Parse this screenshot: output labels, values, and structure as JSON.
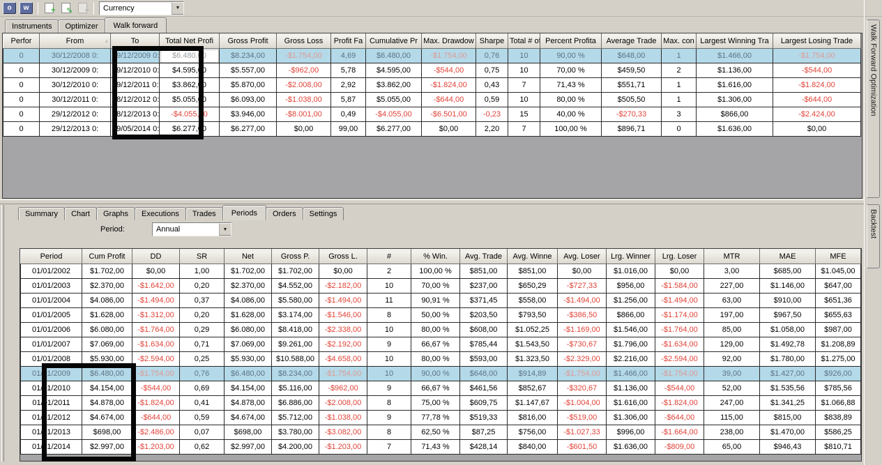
{
  "toolbar": {
    "optimizer_button_label": "o",
    "walkforward_button_label": "w",
    "new_icon_glyph": "+",
    "edit_icon_glyph": "✎",
    "remove_icon_glyph": "−",
    "instrument_selector_value": "Currency"
  },
  "top_panel": {
    "tabs": [
      {
        "label": "Instruments"
      },
      {
        "label": "Optimizer"
      },
      {
        "label": "Walk forward"
      }
    ],
    "active_tab": "Walk forward",
    "side_tab_label": "Walk Forward Optimization",
    "table": {
      "columns": [
        "Perfor",
        "From",
        "To",
        "Total Net Profi",
        "Gross Profit",
        "Gross Loss",
        "Profit Fa",
        "Cumulative Pr",
        "Max. Drawdow",
        "Sharpe",
        "Total # of",
        "Percent Profita",
        "Average Trade",
        "Max. con",
        "Largest Winning Tra",
        "Largest Losing Trade"
      ],
      "sort_column_index": 1,
      "sort_glyph": "▵",
      "selected_row_index": 0,
      "current_cell": [
        0,
        3
      ],
      "rows": [
        [
          "0",
          "30/12/2008 0:",
          "29/12/2009 0:",
          "$6.480,00",
          "$8.234,00",
          "-$1.754,00",
          "4,69",
          "$6.480,00",
          "-$1.754,00",
          "0,76",
          "10",
          "90,00 %",
          "$648,00",
          "1",
          "$1.466,00",
          "-$1.754,00"
        ],
        [
          "0",
          "30/12/2009 0:",
          "29/12/2010 0:",
          "$4.595,00",
          "$5.557,00",
          "-$962,00",
          "5,78",
          "$4.595,00",
          "-$544,00",
          "0,75",
          "10",
          "70,00 %",
          "$459,50",
          "2",
          "$1.136,00",
          "-$544,00"
        ],
        [
          "0",
          "30/12/2010 0:",
          "29/12/2011 0:",
          "$3.862,00",
          "$5.870,00",
          "-$2.008,00",
          "2,92",
          "$3.862,00",
          "-$1.824,00",
          "0,43",
          "7",
          "71,43 %",
          "$551,71",
          "1",
          "$1.616,00",
          "-$1.824,00"
        ],
        [
          "0",
          "30/12/2011 0:",
          "28/12/2012 0:",
          "$5.055,00",
          "$6.093,00",
          "-$1.038,00",
          "5,87",
          "$5.055,00",
          "-$644,00",
          "0,59",
          "10",
          "80,00 %",
          "$505,50",
          "1",
          "$1.306,00",
          "-$644,00"
        ],
        [
          "0",
          "29/12/2012 0:",
          "28/12/2013 0:",
          "-$4.055,00",
          "$3.946,00",
          "-$8.001,00",
          "0,49",
          "-$4.055,00",
          "-$6.501,00",
          "-0,23",
          "15",
          "40,00 %",
          "-$270,33",
          "3",
          "$866,00",
          "-$2.424,00"
        ],
        [
          "0",
          "29/12/2013 0:",
          "19/05/2014 0:",
          "$6.277,00",
          "$6.277,00",
          "$0,00",
          "99,00",
          "$6.277,00",
          "$0,00",
          "2,20",
          "7",
          "100,00 %",
          "$896,71",
          "0",
          "$1.636,00",
          "$0,00"
        ]
      ]
    }
  },
  "bottom_panel": {
    "tabs": [
      {
        "label": "Summary"
      },
      {
        "label": "Chart"
      },
      {
        "label": "Graphs"
      },
      {
        "label": "Executions"
      },
      {
        "label": "Trades"
      },
      {
        "label": "Periods"
      },
      {
        "label": "Orders"
      },
      {
        "label": "Settings"
      }
    ],
    "active_tab": "Periods",
    "side_tab_label": "Backtest",
    "period_label": "Period:",
    "period_value": "Annual",
    "table": {
      "columns": [
        "Period",
        "Cum Profit",
        "DD",
        "SR",
        "Net",
        "Gross P.",
        "Gross L.",
        "#",
        "% Win.",
        "Avg. Trade",
        "Avg. Winne",
        "Avg. Loser",
        "Lrg. Winner",
        "Lrg. Loser",
        "MTR",
        "MAE",
        "MFE"
      ],
      "selected_row_index": 7,
      "rows": [
        [
          "01/01/2002",
          "$1.702,00",
          "$0,00",
          "1,00",
          "$1.702,00",
          "$1.702,00",
          "$0,00",
          "2",
          "100,00 %",
          "$851,00",
          "$851,00",
          "$0,00",
          "$1.016,00",
          "$0,00",
          "3,00",
          "$685,00",
          "$1.045,00"
        ],
        [
          "01/01/2003",
          "$2.370,00",
          "-$1.642,00",
          "0,20",
          "$2.370,00",
          "$4.552,00",
          "-$2.182,00",
          "10",
          "70,00 %",
          "$237,00",
          "$650,29",
          "-$727,33",
          "$956,00",
          "-$1.584,00",
          "227,00",
          "$1.146,00",
          "$647,00"
        ],
        [
          "01/01/2004",
          "$4.086,00",
          "-$1.494,00",
          "0,37",
          "$4.086,00",
          "$5.580,00",
          "-$1.494,00",
          "11",
          "90,91 %",
          "$371,45",
          "$558,00",
          "-$1.494,00",
          "$1.256,00",
          "-$1.494,00",
          "63,00",
          "$910,00",
          "$651,36"
        ],
        [
          "01/01/2005",
          "$1.628,00",
          "-$1.312,00",
          "0,20",
          "$1.628,00",
          "$3.174,00",
          "-$1.546,00",
          "8",
          "50,00 %",
          "$203,50",
          "$793,50",
          "-$386,50",
          "$866,00",
          "-$1.174,00",
          "197,00",
          "$967,50",
          "$655,63"
        ],
        [
          "01/01/2006",
          "$6.080,00",
          "-$1.764,00",
          "0,29",
          "$6.080,00",
          "$8.418,00",
          "-$2.338,00",
          "10",
          "80,00 %",
          "$608,00",
          "$1.052,25",
          "-$1.169,00",
          "$1.546,00",
          "-$1.764,00",
          "85,00",
          "$1.058,00",
          "$987,00"
        ],
        [
          "01/01/2007",
          "$7.069,00",
          "-$1.634,00",
          "0,71",
          "$7.069,00",
          "$9.261,00",
          "-$2.192,00",
          "9",
          "66,67 %",
          "$785,44",
          "$1.543,50",
          "-$730,67",
          "$1.796,00",
          "-$1.634,00",
          "129,00",
          "$1.492,78",
          "$1.208,89"
        ],
        [
          "01/01/2008",
          "$5.930,00",
          "-$2.594,00",
          "0,25",
          "$5.930,00",
          "$10.588,00",
          "-$4.658,00",
          "10",
          "80,00 %",
          "$593,00",
          "$1.323,50",
          "-$2.329,00",
          "$2.216,00",
          "-$2.594,00",
          "92,00",
          "$1.780,00",
          "$1.275,00"
        ],
        [
          "01/01/2009",
          "$6.480,00",
          "-$1.754,00",
          "0,76",
          "$6.480,00",
          "$8.234,00",
          "-$1.754,00",
          "10",
          "90,00 %",
          "$648,00",
          "$914,89",
          "-$1.754,00",
          "$1.466,00",
          "-$1.754,00",
          "39,00",
          "$1.427,00",
          "$926,00"
        ],
        [
          "01/01/2010",
          "$4.154,00",
          "-$544,00",
          "0,69",
          "$4.154,00",
          "$5.116,00",
          "-$962,00",
          "9",
          "66,67 %",
          "$461,56",
          "$852,67",
          "-$320,67",
          "$1.136,00",
          "-$544,00",
          "52,00",
          "$1.535,56",
          "$785,56"
        ],
        [
          "01/01/2011",
          "$4.878,00",
          "-$1.824,00",
          "0,41",
          "$4.878,00",
          "$6.886,00",
          "-$2.008,00",
          "8",
          "75,00 %",
          "$609,75",
          "$1.147,67",
          "-$1.004,00",
          "$1.616,00",
          "-$1.824,00",
          "247,00",
          "$1.341,25",
          "$1.066,88"
        ],
        [
          "01/01/2012",
          "$4.674,00",
          "-$644,00",
          "0,59",
          "$4.674,00",
          "$5.712,00",
          "-$1.038,00",
          "9",
          "77,78 %",
          "$519,33",
          "$816,00",
          "-$519,00",
          "$1.306,00",
          "-$644,00",
          "115,00",
          "$815,00",
          "$838,89"
        ],
        [
          "01/01/2013",
          "$698,00",
          "-$2.486,00",
          "0,07",
          "$698,00",
          "$3.780,00",
          "-$3.082,00",
          "8",
          "62,50 %",
          "$87,25",
          "$756,00",
          "-$1.027,33",
          "$996,00",
          "-$1.664,00",
          "238,00",
          "$1.470,00",
          "$586,25"
        ],
        [
          "01/01/2014",
          "$2.997,00",
          "-$1.203,00",
          "0,62",
          "$2.997,00",
          "$4.200,00",
          "-$1.203,00",
          "7",
          "71,43 %",
          "$428,14",
          "$840,00",
          "-$601,50",
          "$1.636,00",
          "-$809,00",
          "65,00",
          "$946,43",
          "$810,71"
        ]
      ]
    }
  },
  "annotations": [
    {
      "name": "highlight-box-total-net-profit"
    },
    {
      "name": "highlight-box-cum-profit"
    }
  ],
  "colors": {
    "negative_value": "#e04338",
    "selected_row_bg": "#b4d9e8",
    "selected_negative": "#dc9a96",
    "toolbar_button_bg": "#5e6c9e",
    "window_bg": "#d4d0c8",
    "grid_empty_bg": "#a5a4a6"
  }
}
